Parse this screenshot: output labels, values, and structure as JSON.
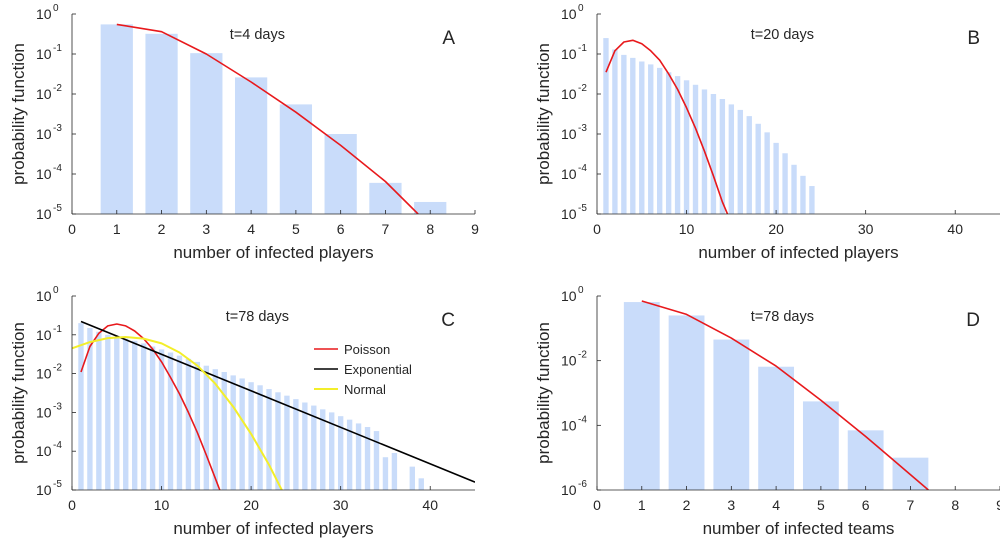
{
  "colors": {
    "bar": "#c9dcfa",
    "poisson": "#e8191c",
    "exponential": "#000000",
    "normal": "#f3ee2a",
    "axis": "#262626"
  },
  "chart_data": [
    {
      "id": "A",
      "type": "bar",
      "panel_label": "A",
      "annotation": "t=4 days",
      "xlabel": "number of infected players",
      "ylabel": "probability function",
      "xlim": [
        0,
        9
      ],
      "xticks": [
        "0",
        "1",
        "2",
        "3",
        "4",
        "5",
        "6",
        "7",
        "8",
        "9"
      ],
      "ylim_log10": [
        -5,
        0
      ],
      "yticks_exp": [
        "0",
        "-1",
        "-2",
        "-3",
        "-4",
        "-5"
      ],
      "bar_width": 0.72,
      "bars": {
        "x": [
          1,
          2,
          3,
          4,
          5,
          6,
          7,
          8
        ],
        "y": [
          0.55,
          0.32,
          0.105,
          0.026,
          0.0055,
          0.001,
          6e-05,
          2e-05
        ]
      },
      "lines": [
        {
          "kind": "poisson",
          "x": [
            1,
            2,
            3,
            4,
            5,
            6,
            7,
            7.73
          ],
          "y": [
            0.55,
            0.36,
            0.1,
            0.02,
            0.0035,
            0.00052,
            6.5e-05,
            1e-05
          ]
        }
      ],
      "legend": []
    },
    {
      "id": "B",
      "type": "bar",
      "panel_label": "B",
      "annotation": "t=20 days",
      "xlabel": "number of infected players",
      "ylabel": "probability function",
      "xlim": [
        0,
        45
      ],
      "xticks": [
        "0",
        "10",
        "20",
        "30",
        "40"
      ],
      "ylim_log10": [
        -5,
        0
      ],
      "yticks_exp": [
        "0",
        "-1",
        "-2",
        "-3",
        "-4",
        "-5"
      ],
      "bar_width": 0.6,
      "bars": {
        "x": [
          1,
          2,
          3,
          4,
          5,
          6,
          7,
          8,
          9,
          10,
          11,
          12,
          13,
          14,
          15,
          16,
          17,
          18,
          19,
          20,
          21,
          22,
          23,
          24
        ],
        "y": [
          0.25,
          0.13,
          0.095,
          0.08,
          0.065,
          0.055,
          0.045,
          0.035,
          0.028,
          0.022,
          0.017,
          0.013,
          0.01,
          0.0075,
          0.0055,
          0.004,
          0.0028,
          0.0018,
          0.0011,
          0.0006,
          0.00033,
          0.00017,
          9e-05,
          5e-05
        ]
      },
      "lines": [
        {
          "kind": "poisson",
          "x": [
            1,
            2,
            3,
            4,
            5,
            6,
            7,
            8,
            9,
            10,
            11,
            12,
            13,
            14,
            15
          ],
          "y": [
            0.035,
            0.12,
            0.2,
            0.22,
            0.18,
            0.12,
            0.07,
            0.032,
            0.013,
            0.0045,
            0.0014,
            0.00037,
            9e-05,
            2e-05,
            6e-06
          ]
        }
      ],
      "legend": []
    },
    {
      "id": "C",
      "type": "bar",
      "panel_label": "C",
      "annotation": "t=78 days",
      "xlabel": "number of infected players",
      "ylabel": "probability function",
      "xlim": [
        0,
        45
      ],
      "xticks": [
        "0",
        "10",
        "20",
        "30",
        "40"
      ],
      "ylim_log10": [
        -5,
        0
      ],
      "yticks_exp": [
        "0",
        "-1",
        "-2",
        "-3",
        "-4",
        "-5"
      ],
      "bar_width": 0.6,
      "bars": {
        "x": [
          1,
          2,
          3,
          4,
          5,
          6,
          7,
          8,
          9,
          10,
          11,
          12,
          13,
          14,
          15,
          16,
          17,
          18,
          19,
          20,
          21,
          22,
          23,
          24,
          25,
          26,
          27,
          28,
          29,
          30,
          31,
          32,
          33,
          34,
          35,
          36,
          37,
          38,
          39
        ],
        "y": [
          0.2,
          0.15,
          0.12,
          0.1,
          0.09,
          0.08,
          0.07,
          0.06,
          0.05,
          0.042,
          0.035,
          0.029,
          0.024,
          0.02,
          0.016,
          0.013,
          0.011,
          0.009,
          0.0075,
          0.006,
          0.005,
          0.004,
          0.0033,
          0.0027,
          0.0022,
          0.0018,
          0.0015,
          0.0012,
          0.001,
          0.0008,
          0.00065,
          0.00052,
          0.00042,
          0.00033,
          7e-05,
          9e-05,
          null,
          4e-05,
          2e-05
        ]
      },
      "lines": [
        {
          "kind": "poisson",
          "x": [
            1,
            2,
            3,
            4,
            5,
            6,
            7,
            8,
            9,
            10,
            11,
            12,
            13,
            14,
            15,
            16,
            17,
            18
          ],
          "y": [
            0.011,
            0.05,
            0.11,
            0.17,
            0.19,
            0.17,
            0.125,
            0.08,
            0.043,
            0.02,
            0.008,
            0.003,
            0.001,
            0.0003,
            8e-05,
            2e-05,
            5e-06,
            8e-07
          ]
        },
        {
          "kind": "exponential",
          "x": [
            1,
            45
          ],
          "y": [
            0.22,
            1.6e-05
          ]
        },
        {
          "kind": "normal",
          "x": [
            0,
            2,
            4,
            6,
            8,
            10,
            12,
            14,
            16,
            18,
            20,
            22,
            24,
            26
          ],
          "y": [
            0.045,
            0.065,
            0.082,
            0.088,
            0.08,
            0.06,
            0.035,
            0.016,
            0.0055,
            0.0014,
            0.00028,
            4.5e-05,
            5.5e-06,
            5e-07
          ]
        }
      ],
      "legend": [
        "Poisson",
        "Exponential",
        "Normal"
      ]
    },
    {
      "id": "D",
      "type": "bar",
      "panel_label": "D",
      "annotation": "t=78 days",
      "xlabel": "number of infected teams",
      "ylabel": "probability function",
      "xlim": [
        0,
        9
      ],
      "xticks": [
        "0",
        "1",
        "2",
        "3",
        "4",
        "5",
        "6",
        "7",
        "8",
        "9"
      ],
      "ylim_log10": [
        -6,
        0
      ],
      "yticks_exp": [
        "0",
        "-2",
        "-4",
        "-6"
      ],
      "bar_width": 0.8,
      "bars": {
        "x": [
          1,
          2,
          3,
          4,
          5,
          6,
          7
        ],
        "y": [
          0.65,
          0.25,
          0.045,
          0.0065,
          0.00055,
          7e-05,
          1e-05
        ]
      },
      "lines": [
        {
          "kind": "poisson",
          "x": [
            1,
            2,
            3,
            4,
            5,
            6,
            7,
            7.4
          ],
          "y": [
            0.7,
            0.27,
            0.05,
            0.0068,
            0.0006,
            4.5e-05,
            3e-06,
            1e-06
          ]
        }
      ],
      "legend": []
    }
  ]
}
